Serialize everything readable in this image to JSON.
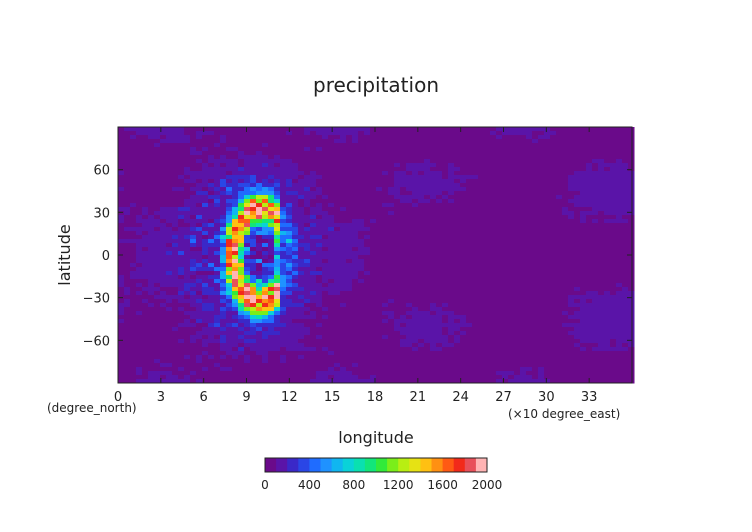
{
  "chart_data": {
    "type": "heatmap",
    "title": "precipitation",
    "xlabel": "longitude",
    "ylabel": "latitude",
    "x_units_note": "(×10 degree_east)",
    "y_units_note": "(degree_north)",
    "xlim": [
      0,
      36
    ],
    "ylim": [
      -90,
      90
    ],
    "x_ticks": [
      "0",
      "3",
      "6",
      "9",
      "12",
      "15",
      "18",
      "21",
      "24",
      "27",
      "30",
      "33"
    ],
    "x_tick_values": [
      0,
      3,
      6,
      9,
      12,
      15,
      18,
      21,
      24,
      27,
      30,
      33
    ],
    "y_ticks": [
      "60",
      "30",
      "0",
      "−30",
      "−60"
    ],
    "y_tick_values": [
      60,
      30,
      0,
      -30,
      -60
    ],
    "colorbar": {
      "ticks": [
        "0",
        "400",
        "800",
        "1200",
        "1600",
        "2000"
      ],
      "tick_values": [
        0,
        400,
        800,
        1200,
        1600,
        2000
      ],
      "range": [
        0,
        2000
      ],
      "colors": [
        "#6a0a8a",
        "#5a14a8",
        "#3a28c8",
        "#2a46e6",
        "#1f6cff",
        "#1f92ff",
        "#10b6f0",
        "#0ad2d8",
        "#0ae0b0",
        "#12e67a",
        "#32ea3a",
        "#7aee1a",
        "#b8ee12",
        "#e6e214",
        "#ffc012",
        "#ff9012",
        "#ff5a14",
        "#f22a1a",
        "#e8505a",
        "#ffb4b4"
      ]
    },
    "features": [
      {
        "region": "background",
        "value_range": [
          0,
          200
        ]
      },
      {
        "region": "c-shaped band centered near longitude 100, latitude 0",
        "value_range": [
          1200,
          2000
        ]
      },
      {
        "region": "low area near longitude 240, latitude 0",
        "value_range": [
          0,
          50
        ]
      }
    ]
  }
}
